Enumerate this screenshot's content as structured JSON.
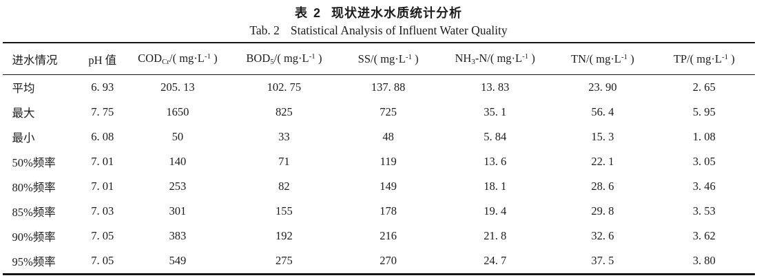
{
  "title": {
    "zh_label": "表 2",
    "zh_text": "现状进水水质统计分析",
    "en_label": "Tab. 2",
    "en_text": "Statistical Analysis of Influent Water Quality"
  },
  "table": {
    "columns": [
      {
        "id": "influent-condition",
        "segments": [
          {
            "t": "进水情况"
          }
        ]
      },
      {
        "id": "ph",
        "segments": [
          {
            "t": "pH 值"
          }
        ]
      },
      {
        "id": "cod-cr",
        "segments": [
          {
            "t": "COD"
          },
          {
            "sub": "Cr"
          },
          {
            "t": "/( mg·L"
          },
          {
            "sup": "-1"
          },
          {
            "t": " )"
          }
        ]
      },
      {
        "id": "bod5",
        "segments": [
          {
            "t": "BOD"
          },
          {
            "sub": "5"
          },
          {
            "t": "/( mg·L"
          },
          {
            "sup": "-1"
          },
          {
            "t": " )"
          }
        ]
      },
      {
        "id": "ss",
        "segments": [
          {
            "t": "SS/( mg·L"
          },
          {
            "sup": "-1"
          },
          {
            "t": " )"
          }
        ]
      },
      {
        "id": "nh3-n",
        "segments": [
          {
            "t": "NH"
          },
          {
            "sub": "3"
          },
          {
            "t": "-N/( mg·L"
          },
          {
            "sup": "-1"
          },
          {
            "t": " )"
          }
        ]
      },
      {
        "id": "tn",
        "segments": [
          {
            "t": "TN/( mg·L"
          },
          {
            "sup": "-1"
          },
          {
            "t": " )"
          }
        ]
      },
      {
        "id": "tp",
        "segments": [
          {
            "t": "TP/( mg·L"
          },
          {
            "sup": "-1"
          },
          {
            "t": " )"
          }
        ]
      }
    ],
    "rows": [
      {
        "label": "平均",
        "values": [
          "6. 93",
          "205. 13",
          "102. 75",
          "137. 88",
          "13. 83",
          "23. 90",
          "2. 65"
        ]
      },
      {
        "label": "最大",
        "values": [
          "7. 75",
          "1650",
          "825",
          "725",
          "35. 1",
          "56. 4",
          "5. 95"
        ]
      },
      {
        "label": "最小",
        "values": [
          "6. 08",
          "50",
          "33",
          "48",
          "5. 84",
          "15. 3",
          "1. 08"
        ]
      },
      {
        "label": "50%频率",
        "values": [
          "7. 01",
          "140",
          "71",
          "119",
          "13. 6",
          "22. 1",
          "3. 05"
        ]
      },
      {
        "label": "80%频率",
        "values": [
          "7. 01",
          "253",
          "82",
          "149",
          "18. 1",
          "28. 6",
          "3. 46"
        ]
      },
      {
        "label": "85%频率",
        "values": [
          "7. 03",
          "301",
          "155",
          "178",
          "19. 4",
          "29. 8",
          "3. 53"
        ]
      },
      {
        "label": "90%频率",
        "values": [
          "7. 05",
          "383",
          "192",
          "216",
          "21. 8",
          "32. 6",
          "3. 62"
        ]
      },
      {
        "label": "95%频率",
        "values": [
          "7. 05",
          "549",
          "275",
          "270",
          "24. 7",
          "37. 5",
          "3. 80"
        ]
      }
    ]
  },
  "colors": {
    "text": "#1c1c1c",
    "rule": "#151515",
    "background": "#ffffff"
  }
}
